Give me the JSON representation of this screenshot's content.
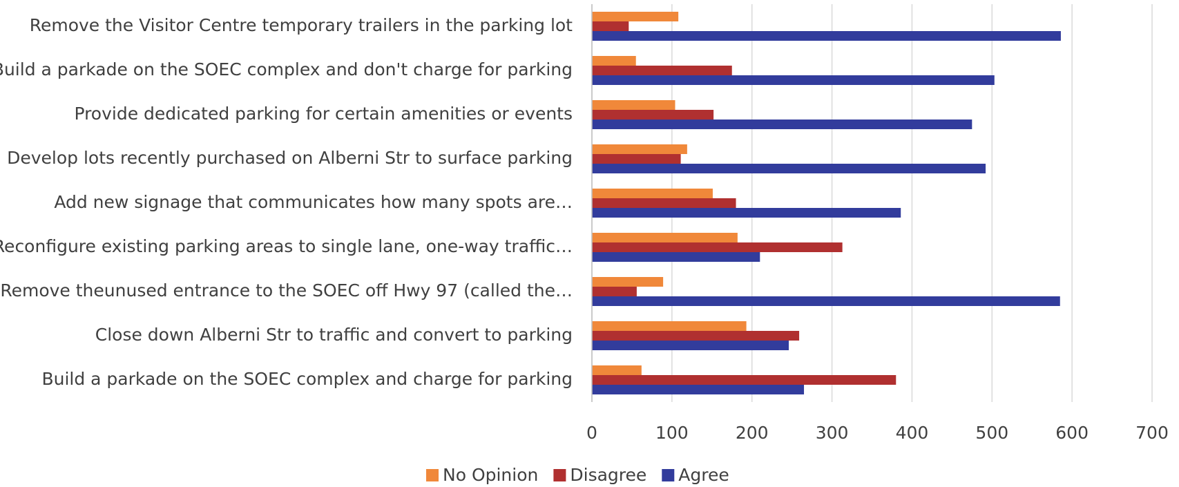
{
  "chart_data": {
    "type": "bar",
    "orientation": "horizontal",
    "categories": [
      "Remove the Visitor Centre temporary trailers in the parking lot",
      "Build a parkade on the SOEC complex and don't charge for parking",
      "Provide dedicated parking for certain amenities or events",
      "Develop lots recently purchased on Alberni Str to surface parking",
      "Add new signage that communicates how many spots are…",
      "Reconfigure existing parking areas to single lane, one-way traffic…",
      "Remove theunused entrance to the SOEC off Hwy 97 (called the…",
      "Close down Alberni Str to traffic and convert to parking",
      "Build a parkade on the SOEC complex and charge for parking"
    ],
    "series": [
      {
        "name": "No Opinion",
        "color": "#f0883a",
        "values": [
          108,
          55,
          104,
          119,
          151,
          182,
          89,
          193,
          62
        ]
      },
      {
        "name": "Disagree",
        "color": "#b03030",
        "values": [
          46,
          175,
          152,
          111,
          180,
          313,
          56,
          259,
          380
        ]
      },
      {
        "name": "Agree",
        "color": "#323c9c",
        "values": [
          586,
          503,
          475,
          492,
          386,
          210,
          585,
          246,
          265
        ]
      }
    ],
    "xlim": [
      0,
      700
    ],
    "xticks": [
      0,
      100,
      200,
      300,
      400,
      500,
      600,
      700
    ],
    "grid": true,
    "legend": "bottom"
  }
}
